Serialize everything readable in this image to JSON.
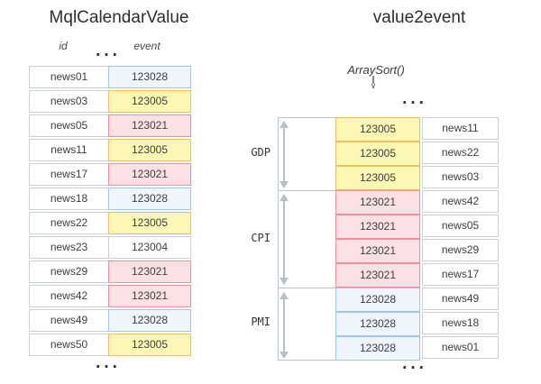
{
  "colors": {
    "yellow_bg": "#FCF8B4",
    "yellow_border": "#F0BE60",
    "pink_bg": "#FCE1E4",
    "pink_border": "#EE9097",
    "blue_bg": "#EEF5FC",
    "blue_border": "#9FC6E8",
    "grid_gray": "#C9D0D6",
    "frame_gray": "#B9C2CA",
    "arrow_gray": "#B6BEC6",
    "text": "#3E3E3E",
    "title": "#2D2D2D"
  },
  "left_table": {
    "title": "MqlCalendarValue",
    "col_headers": {
      "id": "id",
      "event": "event"
    },
    "ellipsis_top": "...",
    "ellipsis_bottom": "...",
    "rows": [
      {
        "id": "news01",
        "event": "123028",
        "color": "blue"
      },
      {
        "id": "news03",
        "event": "123005",
        "color": "yellow"
      },
      {
        "id": "news05",
        "event": "123021",
        "color": "pink"
      },
      {
        "id": "news11",
        "event": "123005",
        "color": "yellow"
      },
      {
        "id": "news17",
        "event": "123021",
        "color": "pink"
      },
      {
        "id": "news18",
        "event": "123028",
        "color": "blue"
      },
      {
        "id": "news22",
        "event": "123005",
        "color": "yellow"
      },
      {
        "id": "news23",
        "event": "123004",
        "color": "none"
      },
      {
        "id": "news29",
        "event": "123021",
        "color": "pink"
      },
      {
        "id": "news42",
        "event": "123021",
        "color": "pink"
      },
      {
        "id": "news49",
        "event": "123028",
        "color": "blue"
      },
      {
        "id": "news50",
        "event": "123005",
        "color": "yellow"
      }
    ]
  },
  "right_table": {
    "title": "value2event",
    "annotation": "ArraySort()",
    "down_symbol_top": "‖",
    "down_symbol_bottom": "∨",
    "ellipsis_top": "...",
    "ellipsis_bottom": "...",
    "groups": [
      {
        "label": "GDP",
        "rows": [
          {
            "event": "123005",
            "id": "news11",
            "color": "yellow"
          },
          {
            "event": "123005",
            "id": "news22",
            "color": "yellow"
          },
          {
            "event": "123005",
            "id": "news03",
            "color": "yellow"
          }
        ]
      },
      {
        "label": "CPI",
        "rows": [
          {
            "event": "123021",
            "id": "news42",
            "color": "pink"
          },
          {
            "event": "123021",
            "id": "news05",
            "color": "pink"
          },
          {
            "event": "123021",
            "id": "news29",
            "color": "pink"
          },
          {
            "event": "123021",
            "id": "news17",
            "color": "pink"
          }
        ]
      },
      {
        "label": "PMI",
        "rows": [
          {
            "event": "123028",
            "id": "news49",
            "color": "blue"
          },
          {
            "event": "123028",
            "id": "news18",
            "color": "blue"
          },
          {
            "event": "123028",
            "id": "news01",
            "color": "blue"
          }
        ]
      }
    ]
  }
}
